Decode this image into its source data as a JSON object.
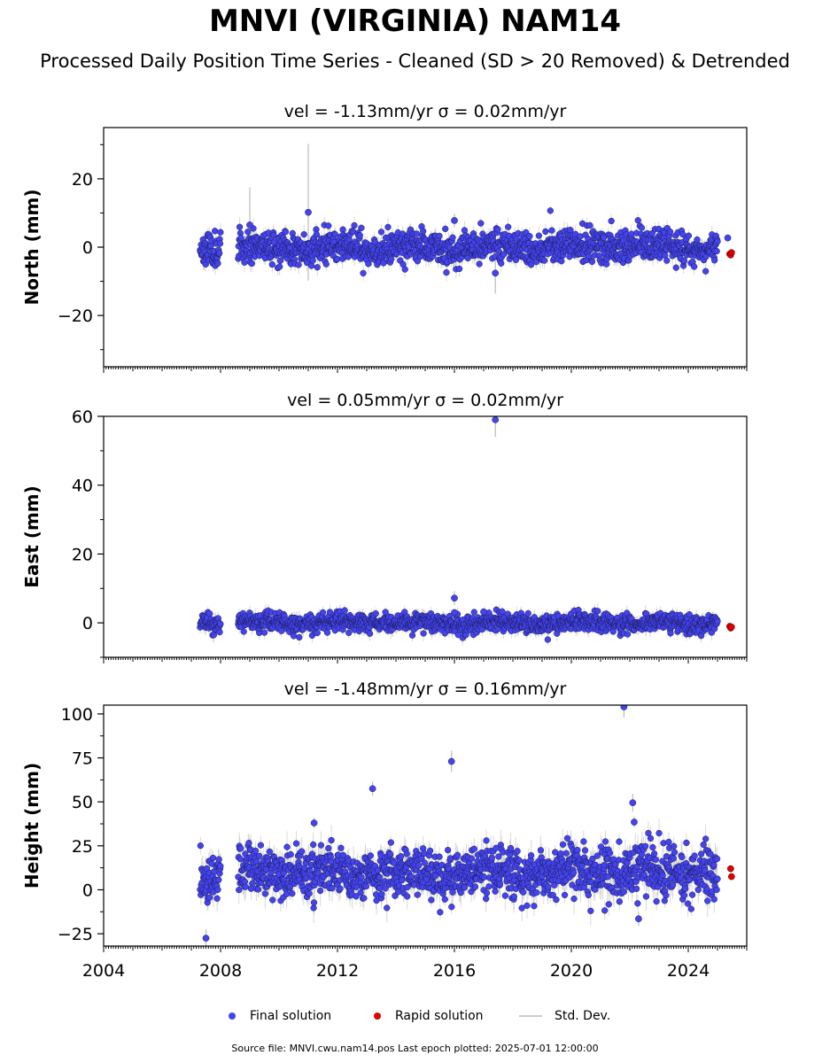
{
  "title": "MNVI (VIRGINIA) NAM14",
  "subtitle": "Processed Daily Position Time Series - Cleaned (SD > 20 Removed) & Detrended",
  "legend": {
    "final": "Final solution",
    "rapid": "Rapid solution",
    "std": "Std. Dev."
  },
  "footer": "Source file: MNVI.cwu.nam14.pos  Last epoch plotted: 2025-07-01 12:00:00",
  "colors": {
    "final": "#4444ee",
    "rapid": "#e00000",
    "std": "#bbbbbb"
  },
  "chart_data": [
    {
      "type": "scatter",
      "title": "vel = -1.13mm/yr   σ = 0.02mm/yr",
      "xlabel": "",
      "ylabel": "North (mm)",
      "xlim": [
        2004,
        2026
      ],
      "ylim": [
        -35,
        35
      ],
      "yticks": [
        -20,
        0,
        20
      ],
      "yticklabels": [
        "−20",
        "0",
        "20"
      ],
      "scatter": 2.4,
      "std": 1.9,
      "gaps": [
        [
          2008.0,
          2008.6
        ]
      ],
      "data_start": 2007.3,
      "data_end": 2025.0,
      "outliers": [
        [
          2011.0,
          10.2,
          20
        ],
        [
          2016.0,
          7.8,
          2
        ],
        [
          2017.4,
          -7.6,
          6
        ],
        [
          2009.0,
          6.5,
          11
        ],
        [
          2025.35,
          2.7,
          1
        ]
      ],
      "rapid": [
        [
          2025.42,
          -2.0
        ],
        [
          2025.45,
          -2.3
        ],
        [
          2025.48,
          -1.6
        ]
      ],
      "seed": 11
    },
    {
      "type": "scatter",
      "title": "vel = 0.05mm/yr   σ = 0.02mm/yr",
      "xlabel": "",
      "ylabel": "East (mm)",
      "xlim": [
        2004,
        2026
      ],
      "ylim": [
        -10,
        60
      ],
      "yticks": [
        0,
        20,
        40,
        60
      ],
      "yticklabels": [
        "0",
        "20",
        "40",
        "60"
      ],
      "scatter": 1.3,
      "std": 1.6,
      "gaps": [
        [
          2008.0,
          2008.6
        ]
      ],
      "data_start": 2007.3,
      "data_end": 2025.0,
      "outliers": [
        [
          2017.4,
          59.0,
          5
        ],
        [
          2016.0,
          7.2,
          2
        ],
        [
          2016.0,
          3.0,
          1
        ],
        [
          2017.0,
          3.2,
          1
        ]
      ],
      "rapid": [
        [
          2025.42,
          -1.0
        ],
        [
          2025.45,
          -1.5
        ],
        [
          2025.48,
          -1.2
        ]
      ],
      "seed": 23
    },
    {
      "type": "scatter",
      "title": "vel = -1.48mm/yr   σ = 0.16mm/yr",
      "xlabel": "",
      "ylabel": "Height (mm)",
      "xlim": [
        2004,
        2026
      ],
      "ylim": [
        -32,
        105
      ],
      "yticks": [
        -25,
        0,
        25,
        50,
        75,
        100
      ],
      "yticklabels": [
        "−25",
        "0",
        "25",
        "50",
        "75",
        "100"
      ],
      "xticks": [
        2004,
        2008,
        2012,
        2016,
        2020,
        2024
      ],
      "xticklabels": [
        "2004",
        "2008",
        "2012",
        "2016",
        "2020",
        "2024"
      ],
      "scatter": 7.0,
      "std": 6.0,
      "offset": 10,
      "gaps": [
        [
          2008.0,
          2008.6
        ]
      ],
      "data_start": 2007.3,
      "data_end": 2025.0,
      "outliers": [
        [
          2007.5,
          -27.5,
          5
        ],
        [
          2013.2,
          57.5,
          4
        ],
        [
          2015.9,
          73.0,
          6
        ],
        [
          2021.8,
          104.0,
          6
        ],
        [
          2022.1,
          49.5,
          5
        ],
        [
          2011.2,
          38.0,
          3
        ],
        [
          2022.3,
          -16.5,
          4
        ],
        [
          2022.15,
          38.5,
          3
        ]
      ],
      "rapid": [
        [
          2025.45,
          12.0
        ],
        [
          2025.48,
          7.5
        ]
      ],
      "seed": 37
    }
  ]
}
